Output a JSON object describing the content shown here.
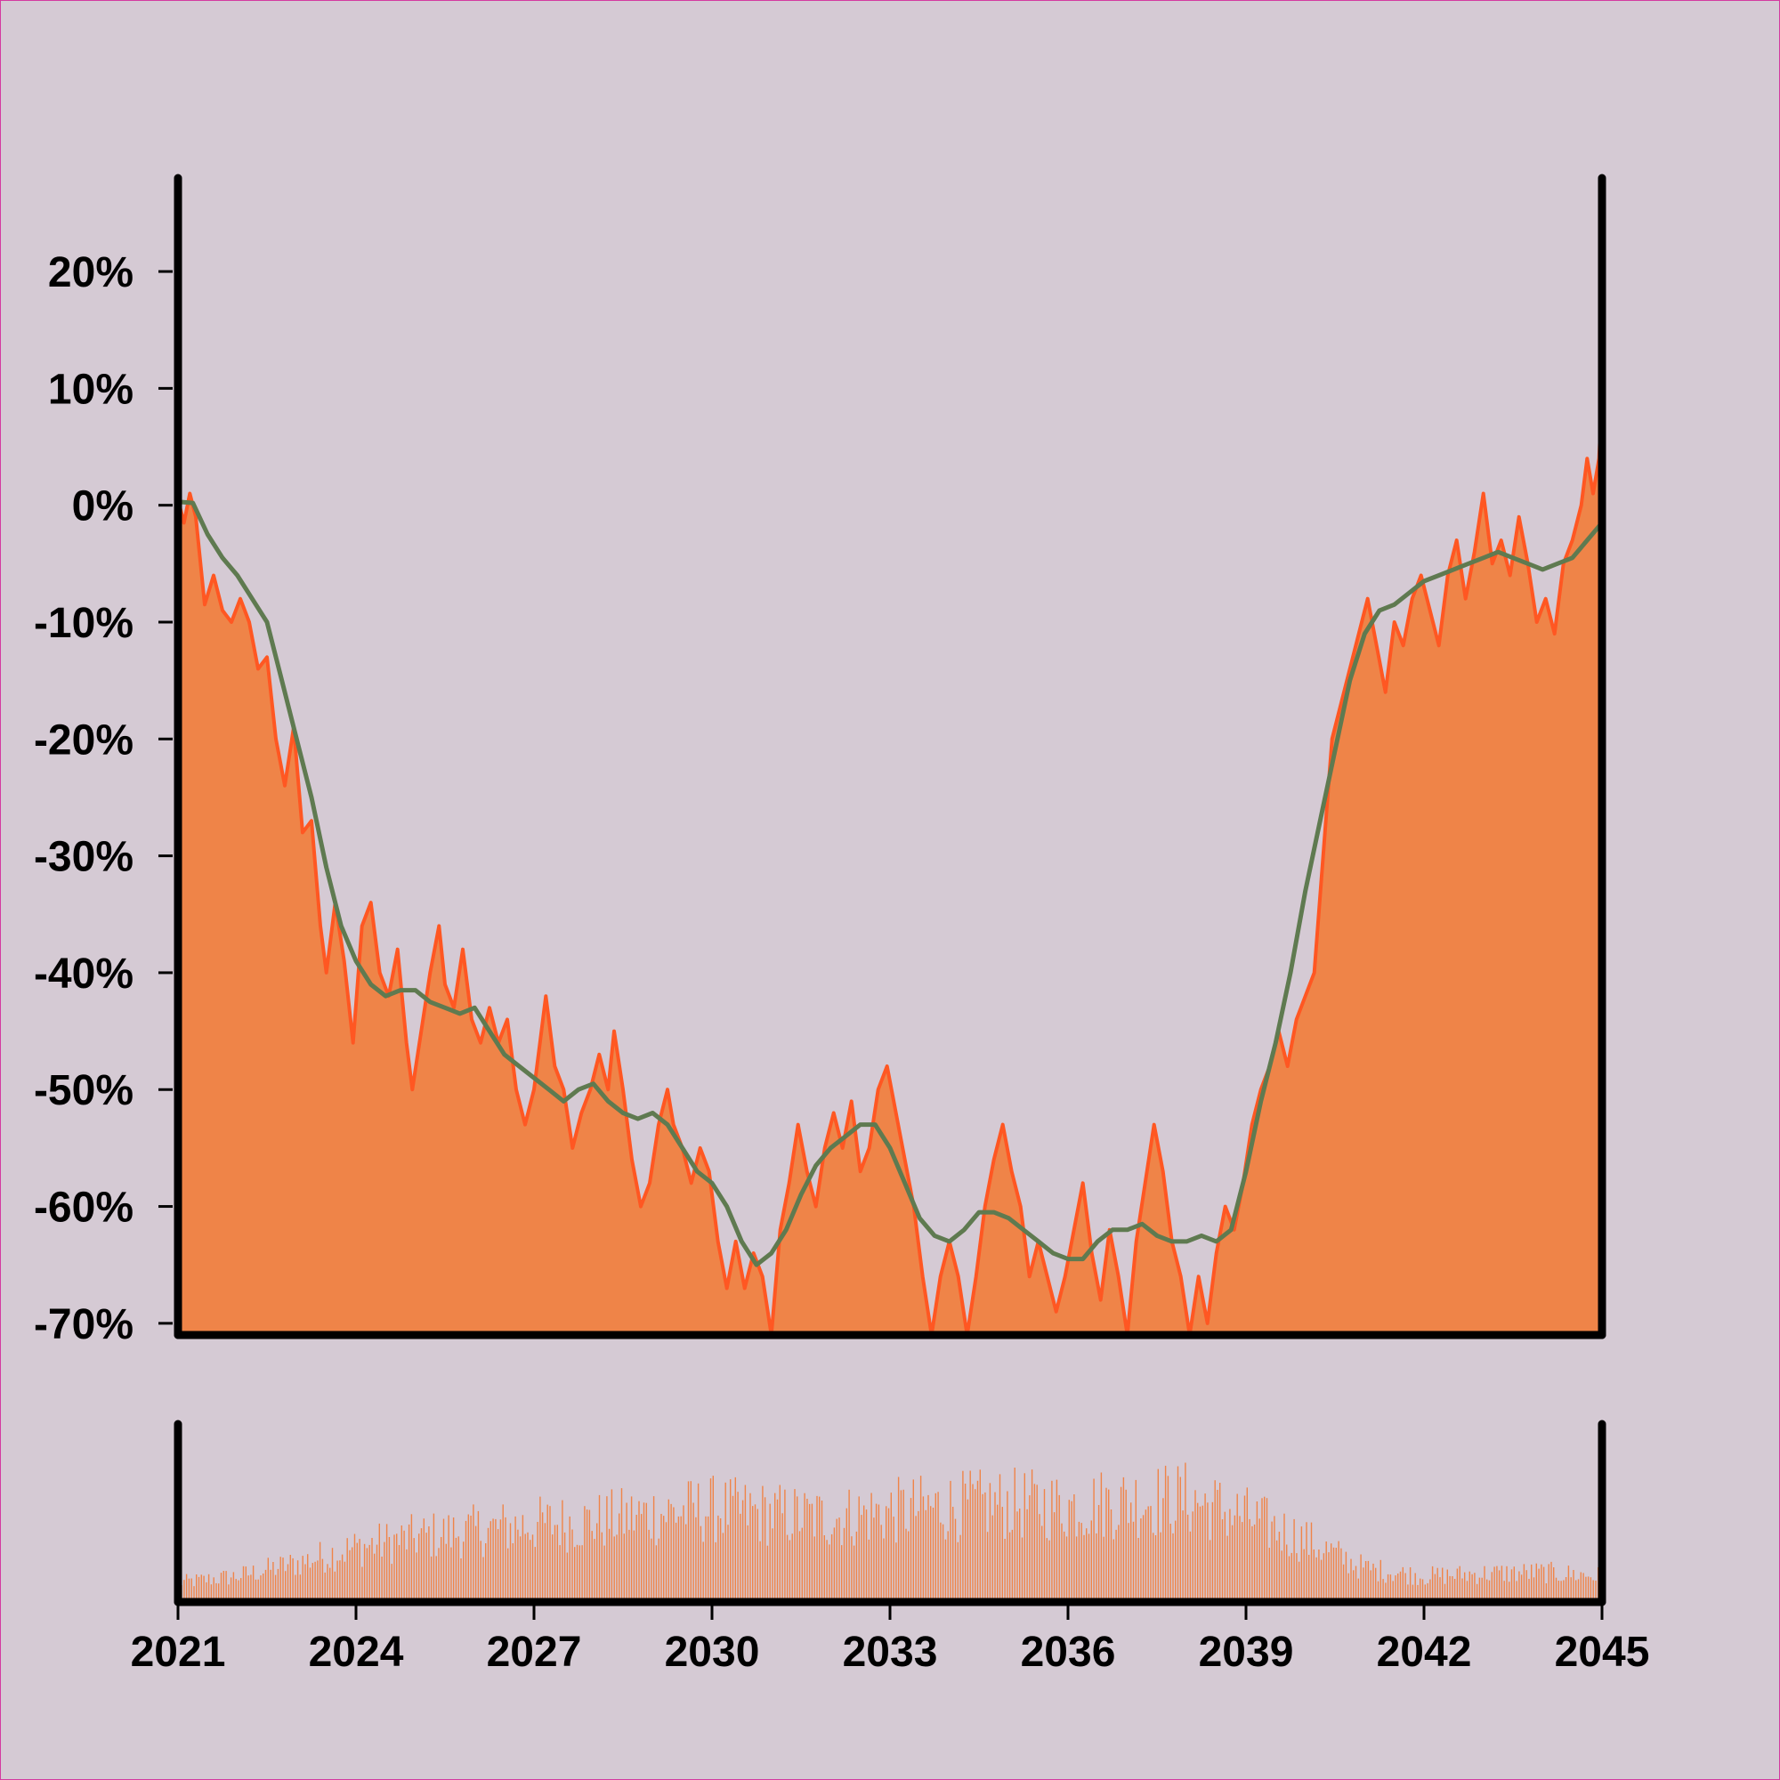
{
  "chart_data": {
    "type": "area",
    "x_range": [
      "2021",
      "2045"
    ],
    "x_tick_labels": [
      "2021",
      "2024",
      "2027",
      "2030",
      "2033",
      "2036",
      "2039",
      "2042",
      "2045"
    ],
    "y_tick_labels": [
      "20%",
      "10%",
      "0%",
      "-10%",
      "-20%",
      "-30%",
      "-40%",
      "-50%",
      "-60%",
      "-70%"
    ],
    "ylim": [
      -71,
      28
    ],
    "grid": false,
    "legend": "none",
    "series": [
      {
        "kind": "area",
        "color": "#ff5722",
        "fill_color": "#ef8448",
        "points": [
          [
            2021.0,
            0.5
          ],
          [
            2021.1,
            -1.5
          ],
          [
            2021.2,
            1.0
          ],
          [
            2021.3,
            -1.0
          ],
          [
            2021.45,
            -8.5
          ],
          [
            2021.6,
            -6
          ],
          [
            2021.75,
            -9
          ],
          [
            2021.9,
            -10
          ],
          [
            2022.05,
            -8
          ],
          [
            2022.2,
            -10
          ],
          [
            2022.35,
            -14
          ],
          [
            2022.5,
            -13
          ],
          [
            2022.65,
            -20
          ],
          [
            2022.8,
            -24
          ],
          [
            2022.95,
            -19
          ],
          [
            2023.1,
            -28
          ],
          [
            2023.25,
            -27
          ],
          [
            2023.4,
            -36
          ],
          [
            2023.5,
            -40
          ],
          [
            2023.65,
            -34
          ],
          [
            2023.8,
            -39
          ],
          [
            2023.95,
            -46
          ],
          [
            2024.1,
            -36
          ],
          [
            2024.25,
            -34
          ],
          [
            2024.4,
            -40
          ],
          [
            2024.55,
            -42
          ],
          [
            2024.7,
            -38
          ],
          [
            2024.85,
            -46
          ],
          [
            2024.95,
            -50
          ],
          [
            2025.1,
            -45
          ],
          [
            2025.25,
            -40
          ],
          [
            2025.4,
            -36
          ],
          [
            2025.5,
            -41
          ],
          [
            2025.65,
            -43
          ],
          [
            2025.8,
            -38
          ],
          [
            2025.95,
            -44
          ],
          [
            2026.1,
            -46
          ],
          [
            2026.25,
            -43
          ],
          [
            2026.4,
            -46
          ],
          [
            2026.55,
            -44
          ],
          [
            2026.7,
            -50
          ],
          [
            2026.85,
            -53
          ],
          [
            2027.0,
            -50
          ],
          [
            2027.1,
            -46
          ],
          [
            2027.2,
            -42
          ],
          [
            2027.35,
            -48
          ],
          [
            2027.5,
            -50
          ],
          [
            2027.65,
            -55
          ],
          [
            2027.8,
            -52
          ],
          [
            2027.95,
            -50
          ],
          [
            2028.1,
            -47
          ],
          [
            2028.25,
            -50
          ],
          [
            2028.35,
            -45
          ],
          [
            2028.5,
            -50
          ],
          [
            2028.65,
            -56
          ],
          [
            2028.8,
            -60
          ],
          [
            2028.95,
            -58
          ],
          [
            2029.1,
            -53
          ],
          [
            2029.25,
            -50
          ],
          [
            2029.35,
            -53
          ],
          [
            2029.5,
            -55
          ],
          [
            2029.65,
            -58
          ],
          [
            2029.8,
            -55
          ],
          [
            2029.95,
            -57
          ],
          [
            2030.1,
            -63
          ],
          [
            2030.25,
            -67
          ],
          [
            2030.4,
            -63
          ],
          [
            2030.55,
            -67
          ],
          [
            2030.7,
            -64
          ],
          [
            2030.85,
            -66
          ],
          [
            2031.0,
            -71
          ],
          [
            2031.15,
            -62
          ],
          [
            2031.3,
            -58
          ],
          [
            2031.45,
            -53
          ],
          [
            2031.6,
            -57
          ],
          [
            2031.75,
            -60
          ],
          [
            2031.9,
            -55
          ],
          [
            2032.05,
            -52
          ],
          [
            2032.2,
            -55
          ],
          [
            2032.35,
            -51
          ],
          [
            2032.5,
            -57
          ],
          [
            2032.65,
            -55
          ],
          [
            2032.8,
            -50
          ],
          [
            2032.95,
            -48
          ],
          [
            2033.1,
            -52
          ],
          [
            2033.25,
            -56
          ],
          [
            2033.4,
            -60
          ],
          [
            2033.55,
            -66
          ],
          [
            2033.7,
            -71
          ],
          [
            2033.85,
            -66
          ],
          [
            2034.0,
            -63
          ],
          [
            2034.15,
            -66
          ],
          [
            2034.3,
            -71
          ],
          [
            2034.45,
            -66
          ],
          [
            2034.6,
            -60
          ],
          [
            2034.75,
            -56
          ],
          [
            2034.9,
            -53
          ],
          [
            2035.05,
            -57
          ],
          [
            2035.2,
            -60
          ],
          [
            2035.35,
            -66
          ],
          [
            2035.5,
            -63
          ],
          [
            2035.65,
            -66
          ],
          [
            2035.8,
            -69
          ],
          [
            2035.95,
            -66
          ],
          [
            2036.1,
            -62
          ],
          [
            2036.25,
            -58
          ],
          [
            2036.4,
            -64
          ],
          [
            2036.55,
            -68
          ],
          [
            2036.7,
            -62
          ],
          [
            2036.85,
            -66
          ],
          [
            2037.0,
            -71
          ],
          [
            2037.15,
            -63
          ],
          [
            2037.3,
            -58
          ],
          [
            2037.45,
            -53
          ],
          [
            2037.6,
            -57
          ],
          [
            2037.75,
            -63
          ],
          [
            2037.9,
            -66
          ],
          [
            2038.05,
            -71
          ],
          [
            2038.2,
            -66
          ],
          [
            2038.35,
            -70
          ],
          [
            2038.5,
            -64
          ],
          [
            2038.65,
            -60
          ],
          [
            2038.8,
            -62
          ],
          [
            2038.95,
            -58
          ],
          [
            2039.1,
            -53
          ],
          [
            2039.25,
            -50
          ],
          [
            2039.4,
            -48
          ],
          [
            2039.55,
            -45
          ],
          [
            2039.7,
            -48
          ],
          [
            2039.85,
            -44
          ],
          [
            2040.0,
            -42
          ],
          [
            2040.15,
            -40
          ],
          [
            2040.3,
            -30
          ],
          [
            2040.45,
            -20
          ],
          [
            2040.6,
            -17
          ],
          [
            2040.75,
            -14
          ],
          [
            2040.9,
            -11
          ],
          [
            2041.05,
            -8
          ],
          [
            2041.2,
            -12
          ],
          [
            2041.35,
            -16
          ],
          [
            2041.5,
            -10
          ],
          [
            2041.65,
            -12
          ],
          [
            2041.8,
            -8
          ],
          [
            2041.95,
            -6
          ],
          [
            2042.1,
            -9
          ],
          [
            2042.25,
            -12
          ],
          [
            2042.4,
            -6
          ],
          [
            2042.55,
            -3
          ],
          [
            2042.7,
            -8
          ],
          [
            2042.85,
            -4
          ],
          [
            2043.0,
            1
          ],
          [
            2043.15,
            -5
          ],
          [
            2043.3,
            -3
          ],
          [
            2043.45,
            -6
          ],
          [
            2043.6,
            -1
          ],
          [
            2043.75,
            -5
          ],
          [
            2043.9,
            -10
          ],
          [
            2044.05,
            -8
          ],
          [
            2044.2,
            -11
          ],
          [
            2044.35,
            -5
          ],
          [
            2044.5,
            -3
          ],
          [
            2044.65,
            0
          ],
          [
            2044.75,
            4
          ],
          [
            2044.85,
            1
          ],
          [
            2044.95,
            4
          ],
          [
            2045.0,
            9.5
          ]
        ]
      },
      {
        "kind": "line",
        "color": "#5f7a50",
        "points": [
          [
            2021.0,
            0.3
          ],
          [
            2021.25,
            0.2
          ],
          [
            2021.5,
            -2.5
          ],
          [
            2021.75,
            -4.5
          ],
          [
            2022.0,
            -6
          ],
          [
            2022.25,
            -8
          ],
          [
            2022.5,
            -10
          ],
          [
            2022.75,
            -15
          ],
          [
            2023.0,
            -20
          ],
          [
            2023.25,
            -25
          ],
          [
            2023.5,
            -31
          ],
          [
            2023.75,
            -36
          ],
          [
            2024.0,
            -39
          ],
          [
            2024.25,
            -41
          ],
          [
            2024.5,
            -42
          ],
          [
            2024.75,
            -41.5
          ],
          [
            2025.0,
            -41.5
          ],
          [
            2025.25,
            -42.5
          ],
          [
            2025.5,
            -43
          ],
          [
            2025.75,
            -43.5
          ],
          [
            2026.0,
            -43
          ],
          [
            2026.25,
            -45
          ],
          [
            2026.5,
            -47
          ],
          [
            2026.75,
            -48
          ],
          [
            2027.0,
            -49
          ],
          [
            2027.25,
            -50
          ],
          [
            2027.5,
            -51
          ],
          [
            2027.75,
            -50
          ],
          [
            2028.0,
            -49.5
          ],
          [
            2028.25,
            -51
          ],
          [
            2028.5,
            -52
          ],
          [
            2028.75,
            -52.5
          ],
          [
            2029.0,
            -52
          ],
          [
            2029.25,
            -53
          ],
          [
            2029.5,
            -55
          ],
          [
            2029.75,
            -57
          ],
          [
            2030.0,
            -58
          ],
          [
            2030.25,
            -60
          ],
          [
            2030.5,
            -63
          ],
          [
            2030.75,
            -65
          ],
          [
            2031.0,
            -64
          ],
          [
            2031.25,
            -62
          ],
          [
            2031.5,
            -59
          ],
          [
            2031.75,
            -56.5
          ],
          [
            2032.0,
            -55
          ],
          [
            2032.25,
            -54
          ],
          [
            2032.5,
            -53
          ],
          [
            2032.75,
            -53
          ],
          [
            2033.0,
            -55
          ],
          [
            2033.25,
            -58
          ],
          [
            2033.5,
            -61
          ],
          [
            2033.75,
            -62.5
          ],
          [
            2034.0,
            -63
          ],
          [
            2034.25,
            -62
          ],
          [
            2034.5,
            -60.5
          ],
          [
            2034.75,
            -60.5
          ],
          [
            2035.0,
            -61
          ],
          [
            2035.25,
            -62
          ],
          [
            2035.5,
            -63
          ],
          [
            2035.75,
            -64
          ],
          [
            2036.0,
            -64.5
          ],
          [
            2036.25,
            -64.5
          ],
          [
            2036.5,
            -63
          ],
          [
            2036.75,
            -62
          ],
          [
            2037.0,
            -62
          ],
          [
            2037.25,
            -61.5
          ],
          [
            2037.5,
            -62.5
          ],
          [
            2037.75,
            -63
          ],
          [
            2038.0,
            -63
          ],
          [
            2038.25,
            -62.5
          ],
          [
            2038.5,
            -63
          ],
          [
            2038.75,
            -62
          ],
          [
            2039.0,
            -57
          ],
          [
            2039.25,
            -51
          ],
          [
            2039.5,
            -46
          ],
          [
            2039.75,
            -40
          ],
          [
            2040.0,
            -33
          ],
          [
            2040.25,
            -27
          ],
          [
            2040.5,
            -21
          ],
          [
            2040.75,
            -15
          ],
          [
            2041.0,
            -11
          ],
          [
            2041.25,
            -9
          ],
          [
            2041.5,
            -8.5
          ],
          [
            2041.75,
            -7.5
          ],
          [
            2042.0,
            -6.5
          ],
          [
            2042.25,
            -6
          ],
          [
            2042.5,
            -5.5
          ],
          [
            2042.75,
            -5
          ],
          [
            2043.0,
            -4.5
          ],
          [
            2043.25,
            -4
          ],
          [
            2043.5,
            -4.5
          ],
          [
            2043.75,
            -5
          ],
          [
            2044.0,
            -5.5
          ],
          [
            2044.25,
            -5
          ],
          [
            2044.5,
            -4.5
          ],
          [
            2044.75,
            -3
          ],
          [
            2045.0,
            -1.5
          ]
        ]
      }
    ],
    "volume": {
      "color": "#ef8448",
      "bars_per_year": 24,
      "envelope": [
        [
          2021.0,
          0.15
        ],
        [
          2022.0,
          0.2
        ],
        [
          2023.0,
          0.3
        ],
        [
          2024.0,
          0.42
        ],
        [
          2025.0,
          0.5
        ],
        [
          2026.0,
          0.55
        ],
        [
          2027.0,
          0.6
        ],
        [
          2028.0,
          0.62
        ],
        [
          2029.0,
          0.68
        ],
        [
          2030.0,
          0.72
        ],
        [
          2031.0,
          0.68
        ],
        [
          2032.0,
          0.65
        ],
        [
          2033.0,
          0.7
        ],
        [
          2034.0,
          0.74
        ],
        [
          2035.0,
          0.76
        ],
        [
          2036.0,
          0.74
        ],
        [
          2037.0,
          0.78
        ],
        [
          2038.0,
          0.8
        ],
        [
          2039.0,
          0.66
        ],
        [
          2040.0,
          0.48
        ],
        [
          2041.0,
          0.26
        ],
        [
          2042.0,
          0.2
        ],
        [
          2043.0,
          0.22
        ],
        [
          2044.0,
          0.23
        ],
        [
          2045.0,
          0.2
        ]
      ]
    }
  }
}
